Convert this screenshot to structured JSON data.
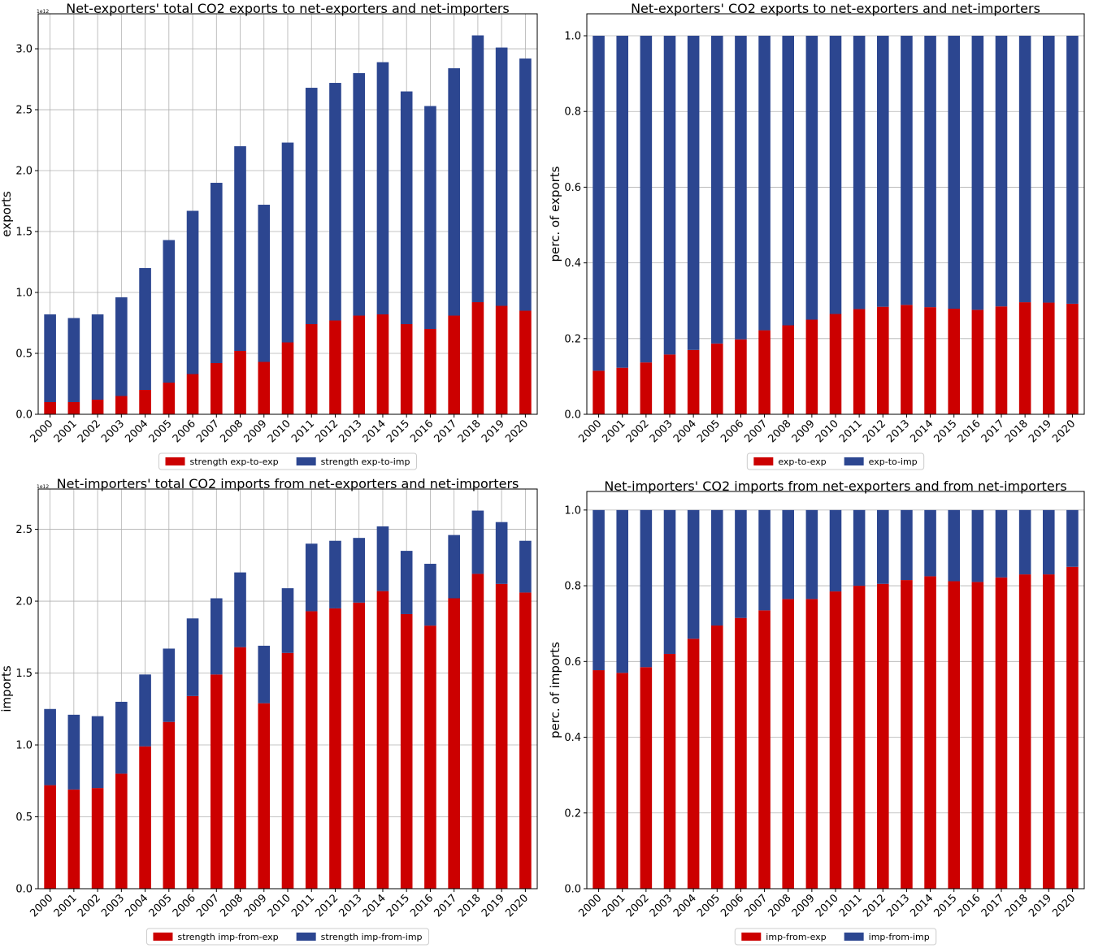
{
  "chart_data": [
    {
      "type": "stacked_bar",
      "title": "Net-exporters' total CO2 exports to net-exporters and net-importers",
      "ylabel": "exports",
      "offset_label": "1e12",
      "categories": [
        "2000",
        "2001",
        "2002",
        "2003",
        "2004",
        "2005",
        "2006",
        "2007",
        "2008",
        "2009",
        "2010",
        "2011",
        "2012",
        "2013",
        "2014",
        "2015",
        "2016",
        "2017",
        "2018",
        "2019",
        "2020"
      ],
      "series": [
        {
          "name": "strength exp-to-exp",
          "color": "#cc0000",
          "values": [
            0.1,
            0.1,
            0.12,
            0.15,
            0.2,
            0.26,
            0.33,
            0.42,
            0.52,
            0.43,
            0.59,
            0.74,
            0.77,
            0.81,
            0.82,
            0.74,
            0.7,
            0.81,
            0.92,
            0.89,
            0.85
          ]
        },
        {
          "name": "strength exp-to-imp",
          "color": "#2c4690",
          "values": [
            0.72,
            0.69,
            0.7,
            0.81,
            1.0,
            1.17,
            1.34,
            1.48,
            1.68,
            1.29,
            1.64,
            1.94,
            1.95,
            1.99,
            2.07,
            1.91,
            1.83,
            2.03,
            2.19,
            2.12,
            2.07
          ]
        }
      ],
      "ylim": [
        0,
        3.287
      ],
      "yticks": [
        {
          "value": 0,
          "label": "0.0"
        },
        0.5,
        {
          "value": 1,
          "label": "1.0"
        },
        1.5,
        {
          "value": 2,
          "label": "2.0"
        },
        2.5,
        {
          "value": 3,
          "label": "3.0"
        }
      ],
      "grid": "both",
      "legend": "below"
    },
    {
      "type": "stacked_bar",
      "title": "Net-exporters' CO2 exports to net-exporters and net-importers",
      "ylabel": "perc. of exports",
      "categories": [
        "2000",
        "2001",
        "2002",
        "2003",
        "2004",
        "2005",
        "2006",
        "2007",
        "2008",
        "2009",
        "2010",
        "2011",
        "2012",
        "2013",
        "2014",
        "2015",
        "2016",
        "2017",
        "2018",
        "2019",
        "2020"
      ],
      "series": [
        {
          "name": "exp-to-exp",
          "color": "#cc0000",
          "values": [
            0.115,
            0.123,
            0.137,
            0.158,
            0.17,
            0.187,
            0.198,
            0.222,
            0.235,
            0.25,
            0.265,
            0.278,
            0.284,
            0.289,
            0.283,
            0.279,
            0.276,
            0.285,
            0.296,
            0.295,
            0.292
          ]
        },
        {
          "name": "exp-to-imp",
          "color": "#2c4690",
          "values": [
            0.885,
            0.877,
            0.863,
            0.842,
            0.83,
            0.813,
            0.802,
            0.778,
            0.765,
            0.75,
            0.735,
            0.722,
            0.716,
            0.711,
            0.717,
            0.721,
            0.724,
            0.715,
            0.704,
            0.705,
            0.708
          ]
        }
      ],
      "ylim": [
        0,
        1.058
      ],
      "yticks": [
        {
          "value": 0,
          "label": "0.0"
        },
        0.2,
        0.4,
        0.6,
        0.8,
        {
          "value": 1,
          "label": "1.0"
        }
      ],
      "grid": "y",
      "legend": "below"
    },
    {
      "type": "stacked_bar",
      "title": "Net-importers' total CO2 imports from net-exporters and net-importers",
      "ylabel": "imports",
      "offset_label": "1e12",
      "categories": [
        "2000",
        "2001",
        "2002",
        "2003",
        "2004",
        "2005",
        "2006",
        "2007",
        "2008",
        "2009",
        "2010",
        "2011",
        "2012",
        "2013",
        "2014",
        "2015",
        "2016",
        "2017",
        "2018",
        "2019",
        "2020"
      ],
      "series": [
        {
          "name": "strength imp-from-exp",
          "color": "#cc0000",
          "values": [
            0.72,
            0.69,
            0.7,
            0.8,
            0.99,
            1.16,
            1.34,
            1.49,
            1.68,
            1.29,
            1.64,
            1.93,
            1.95,
            1.99,
            2.07,
            1.91,
            1.83,
            2.02,
            2.19,
            2.12,
            2.06
          ]
        },
        {
          "name": "strength imp-from-imp",
          "color": "#2c4690",
          "values": [
            0.53,
            0.52,
            0.5,
            0.5,
            0.5,
            0.51,
            0.54,
            0.53,
            0.52,
            0.4,
            0.45,
            0.47,
            0.47,
            0.45,
            0.45,
            0.44,
            0.43,
            0.44,
            0.44,
            0.43,
            0.36
          ]
        }
      ],
      "ylim": [
        0,
        2.78
      ],
      "yticks": [
        {
          "value": 0,
          "label": "0.0"
        },
        0.5,
        {
          "value": 1,
          "label": "1.0"
        },
        1.5,
        {
          "value": 2,
          "label": "2.0"
        },
        2.5
      ],
      "grid": "both",
      "legend": "below"
    },
    {
      "type": "stacked_bar",
      "title": "Net-importers' CO2 imports from net-exporters and from net-importers",
      "ylabel": "perc. of imports",
      "categories": [
        "2000",
        "2001",
        "2002",
        "2003",
        "2004",
        "2005",
        "2006",
        "2007",
        "2008",
        "2009",
        "2010",
        "2011",
        "2012",
        "2013",
        "2014",
        "2015",
        "2016",
        "2017",
        "2018",
        "2019",
        "2020"
      ],
      "series": [
        {
          "name": "imp-from-exp",
          "color": "#cc0000",
          "values": [
            0.577,
            0.57,
            0.585,
            0.62,
            0.66,
            0.695,
            0.715,
            0.735,
            0.765,
            0.765,
            0.785,
            0.8,
            0.805,
            0.815,
            0.825,
            0.812,
            0.81,
            0.822,
            0.83,
            0.83,
            0.85
          ]
        },
        {
          "name": "imp-from-imp",
          "color": "#2c4690",
          "values": [
            0.423,
            0.43,
            0.415,
            0.38,
            0.34,
            0.305,
            0.285,
            0.265,
            0.235,
            0.235,
            0.215,
            0.2,
            0.195,
            0.185,
            0.175,
            0.188,
            0.19,
            0.178,
            0.17,
            0.17,
            0.15
          ]
        }
      ],
      "ylim": [
        0,
        1.049
      ],
      "yticks": [
        {
          "value": 0,
          "label": "0.0"
        },
        0.2,
        0.4,
        0.6,
        0.8,
        {
          "value": 1,
          "label": "1.0"
        }
      ],
      "grid": "y",
      "legend": "below"
    }
  ]
}
